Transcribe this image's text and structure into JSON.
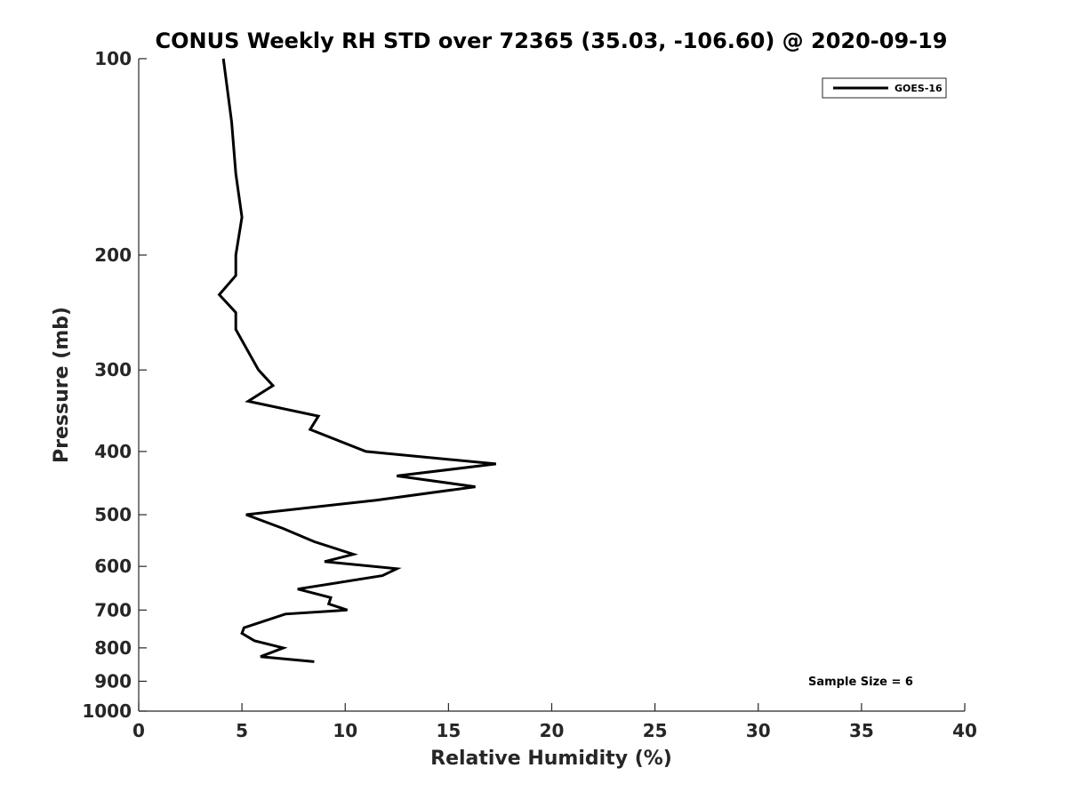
{
  "chart_data": {
    "type": "line",
    "title": "CONUS Weekly RH STD over 72365 (35.03, -106.60) @ 2020-09-19",
    "xlabel": "Relative Humidity (%)",
    "ylabel": "Pressure (mb)",
    "xlim": [
      0,
      40
    ],
    "ylim": [
      100,
      1000
    ],
    "y_scale": "log",
    "y_reversed": true,
    "x_ticks": [
      "0",
      "5",
      "10",
      "15",
      "20",
      "25",
      "30",
      "35",
      "40"
    ],
    "y_ticks": [
      "100",
      "200",
      "300",
      "400",
      "500",
      "600",
      "700",
      "800",
      "900",
      "1000"
    ],
    "grid": false,
    "legend_position": "top-right",
    "series": [
      {
        "name": "GOES-16",
        "color": "#000000",
        "points": [
          {
            "x": 4.1,
            "y": 100
          },
          {
            "x": 4.5,
            "y": 125
          },
          {
            "x": 4.7,
            "y": 150
          },
          {
            "x": 5.0,
            "y": 175
          },
          {
            "x": 4.7,
            "y": 200
          },
          {
            "x": 4.7,
            "y": 215
          },
          {
            "x": 3.9,
            "y": 230
          },
          {
            "x": 4.7,
            "y": 245
          },
          {
            "x": 4.7,
            "y": 260
          },
          {
            "x": 5.8,
            "y": 300
          },
          {
            "x": 6.5,
            "y": 317
          },
          {
            "x": 5.3,
            "y": 335
          },
          {
            "x": 8.7,
            "y": 353
          },
          {
            "x": 8.3,
            "y": 370
          },
          {
            "x": 11.0,
            "y": 400
          },
          {
            "x": 17.3,
            "y": 418
          },
          {
            "x": 12.5,
            "y": 436
          },
          {
            "x": 16.3,
            "y": 453
          },
          {
            "x": 11.5,
            "y": 475
          },
          {
            "x": 5.2,
            "y": 500
          },
          {
            "x": 7.0,
            "y": 525
          },
          {
            "x": 8.5,
            "y": 550
          },
          {
            "x": 10.4,
            "y": 575
          },
          {
            "x": 9.0,
            "y": 590
          },
          {
            "x": 12.5,
            "y": 605
          },
          {
            "x": 11.8,
            "y": 620
          },
          {
            "x": 7.7,
            "y": 650
          },
          {
            "x": 9.3,
            "y": 670
          },
          {
            "x": 9.2,
            "y": 685
          },
          {
            "x": 10.1,
            "y": 700
          },
          {
            "x": 7.1,
            "y": 710
          },
          {
            "x": 5.1,
            "y": 745
          },
          {
            "x": 5.0,
            "y": 760
          },
          {
            "x": 5.6,
            "y": 780
          },
          {
            "x": 7.0,
            "y": 800
          },
          {
            "x": 5.9,
            "y": 825
          },
          {
            "x": 8.5,
            "y": 840
          }
        ]
      }
    ],
    "annotations": [
      "Sample Size = 6"
    ]
  }
}
